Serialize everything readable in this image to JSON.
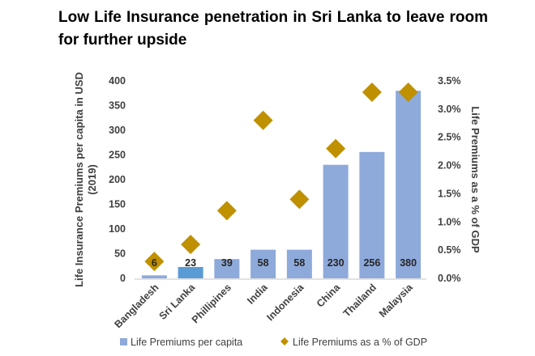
{
  "chart_data": {
    "type": "bar",
    "title": "Low Life Insurance penetration in Sri Lanka to leave room for further upside",
    "categories": [
      "Bangladesh",
      "Sri Lanka",
      "Phillipines",
      "India",
      "Indonesia",
      "China",
      "Thailand",
      "Malaysia"
    ],
    "series": [
      {
        "name": "Life Premiums per capita",
        "type": "bar",
        "axis": "left",
        "values": [
          6,
          23,
          39,
          58,
          58,
          230,
          256,
          380
        ],
        "color": "#8eaadb",
        "highlight_color": "#5b9bd5",
        "highlight_index": 1,
        "data_labels": [
          "6",
          "23",
          "39",
          "58",
          "58",
          "230",
          "256",
          "380"
        ]
      },
      {
        "name": "Life Premiums as a % of GDP",
        "type": "scatter",
        "marker": "diamond",
        "axis": "right",
        "values": [
          0.3,
          0.6,
          1.2,
          2.8,
          1.4,
          2.3,
          3.3,
          3.3
        ],
        "color": "#bf9000"
      }
    ],
    "ylabel": "Life Insurance Premiums per capita in USD (2019)",
    "y2label": "Life Premiums as a % of GDP",
    "ylim": [
      0,
      400
    ],
    "y2lim": [
      0,
      3.5
    ],
    "yticks": [
      "0",
      "50",
      "100",
      "150",
      "200",
      "250",
      "300",
      "350",
      "400"
    ],
    "y2ticks": [
      "0.0%",
      "0.5%",
      "1.0%",
      "1.5%",
      "2.0%",
      "2.5%",
      "3.0%",
      "3.5%"
    ],
    "grid": false,
    "legend": "bottom"
  }
}
